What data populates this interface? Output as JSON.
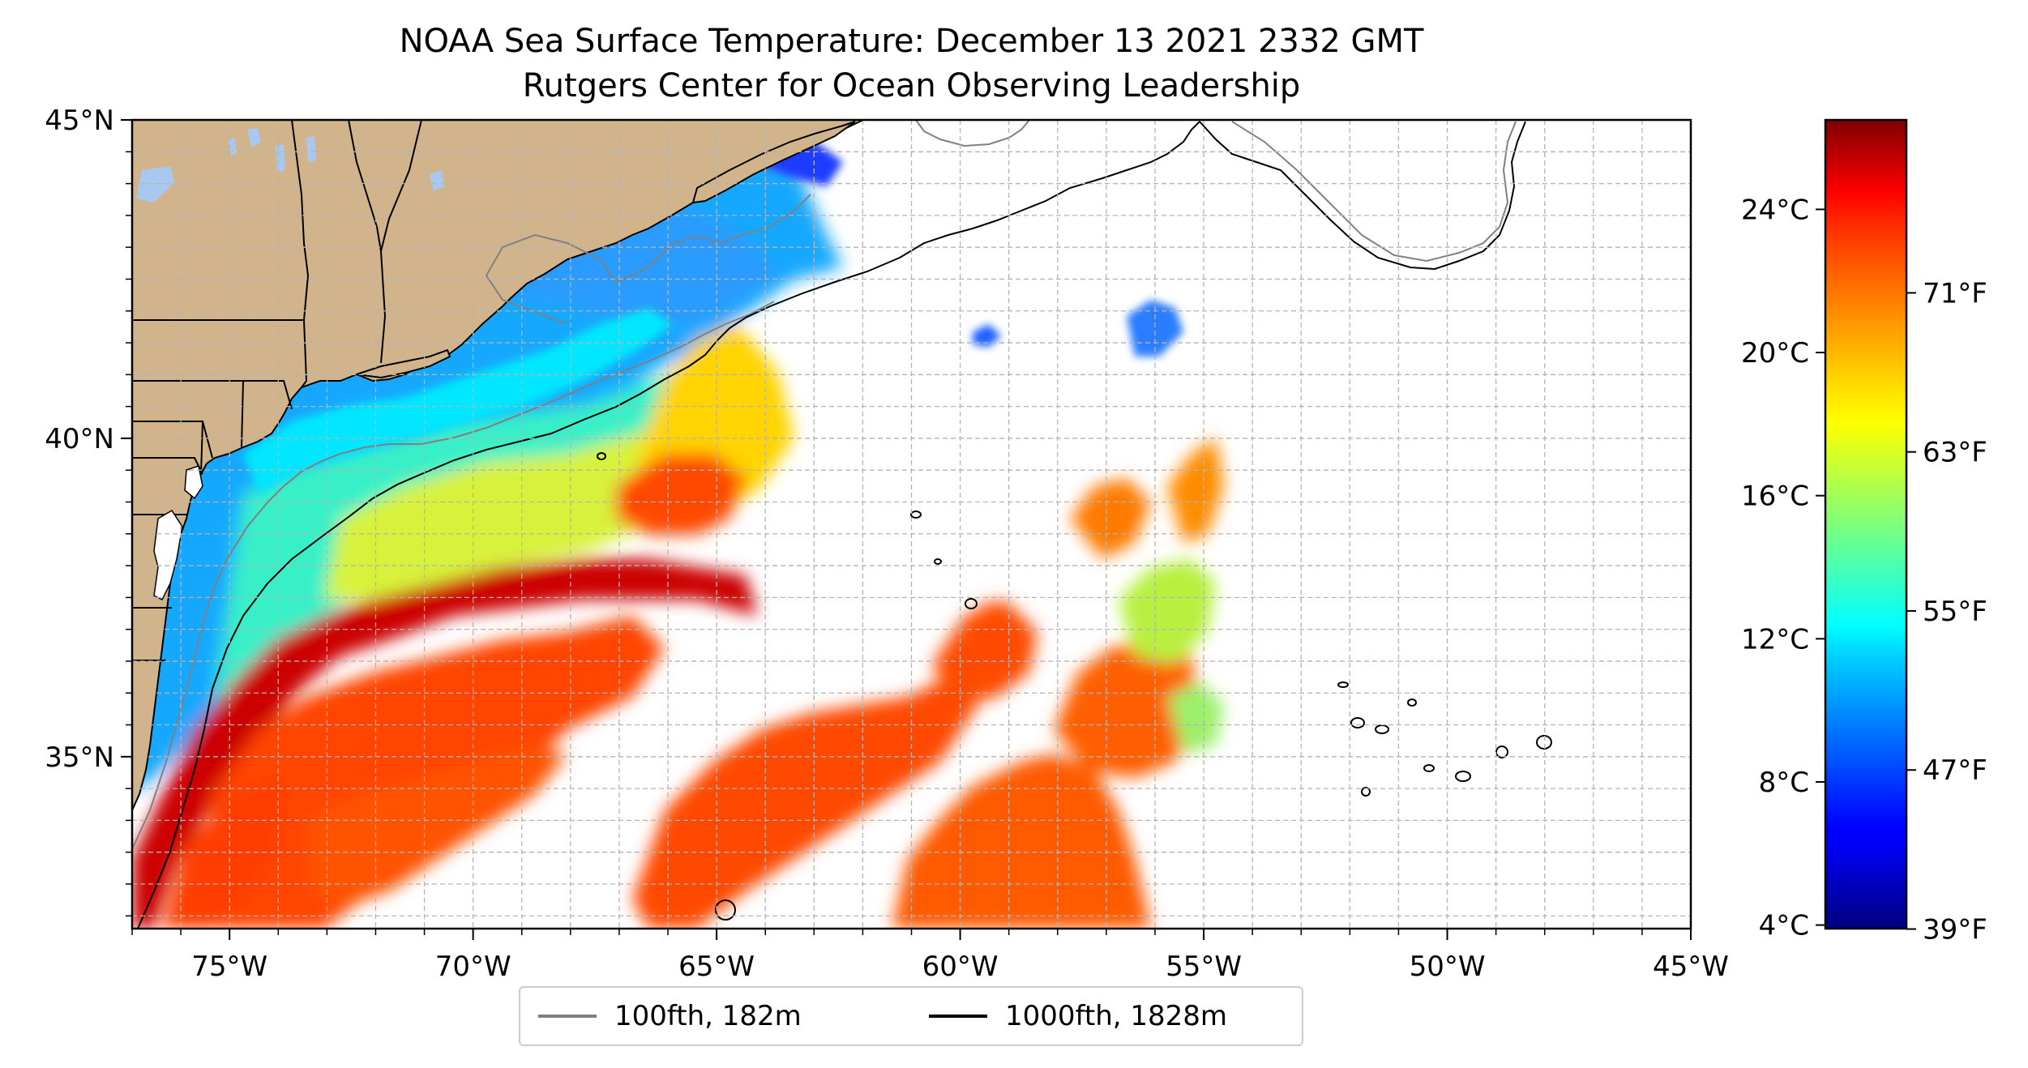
{
  "title": {
    "line1": "NOAA Sea Surface Temperature: December 13 2021 2332 GMT",
    "line2": "Rutgers Center for Ocean Observing Leadership"
  },
  "map": {
    "lon_range": [
      -77,
      -45
    ],
    "lat_range": [
      32.3,
      45
    ],
    "lon_ticks": [
      {
        "value": -75,
        "label": "75°W"
      },
      {
        "value": -70,
        "label": "70°W"
      },
      {
        "value": -65,
        "label": "65°W"
      },
      {
        "value": -60,
        "label": "60°W"
      },
      {
        "value": -55,
        "label": "55°W"
      },
      {
        "value": -50,
        "label": "50°W"
      },
      {
        "value": -45,
        "label": "45°W"
      }
    ],
    "lat_ticks": [
      {
        "value": 45,
        "label": "45°N"
      },
      {
        "value": 40,
        "label": "40°N"
      },
      {
        "value": 35,
        "label": "35°N"
      }
    ],
    "grid": true,
    "land_color": "#d2b48c",
    "water_nodata_color": "#ffffff",
    "projection": "plate carree"
  },
  "legend": {
    "placement": "bottom-center",
    "items": [
      {
        "label": "100fth, 182m",
        "color": "#808080"
      },
      {
        "label": "1000fth, 1828m",
        "color": "#000000"
      }
    ]
  },
  "colorbar": {
    "colormap": "jet",
    "range_c": [
      3.9,
      26.5
    ],
    "celsius_ticks": [
      {
        "value": 4,
        "label": "4°C"
      },
      {
        "value": 8,
        "label": "8°C"
      },
      {
        "value": 12,
        "label": "12°C"
      },
      {
        "value": 16,
        "label": "16°C"
      },
      {
        "value": 20,
        "label": "20°C"
      },
      {
        "value": 24,
        "label": "24°C"
      }
    ],
    "fahrenheit_ticks": [
      {
        "value": 39,
        "label": "39°F"
      },
      {
        "value": 47,
        "label": "47°F"
      },
      {
        "value": 55,
        "label": "55°F"
      },
      {
        "value": 63,
        "label": "63°F"
      },
      {
        "value": 71,
        "label": "71°F"
      }
    ]
  }
}
